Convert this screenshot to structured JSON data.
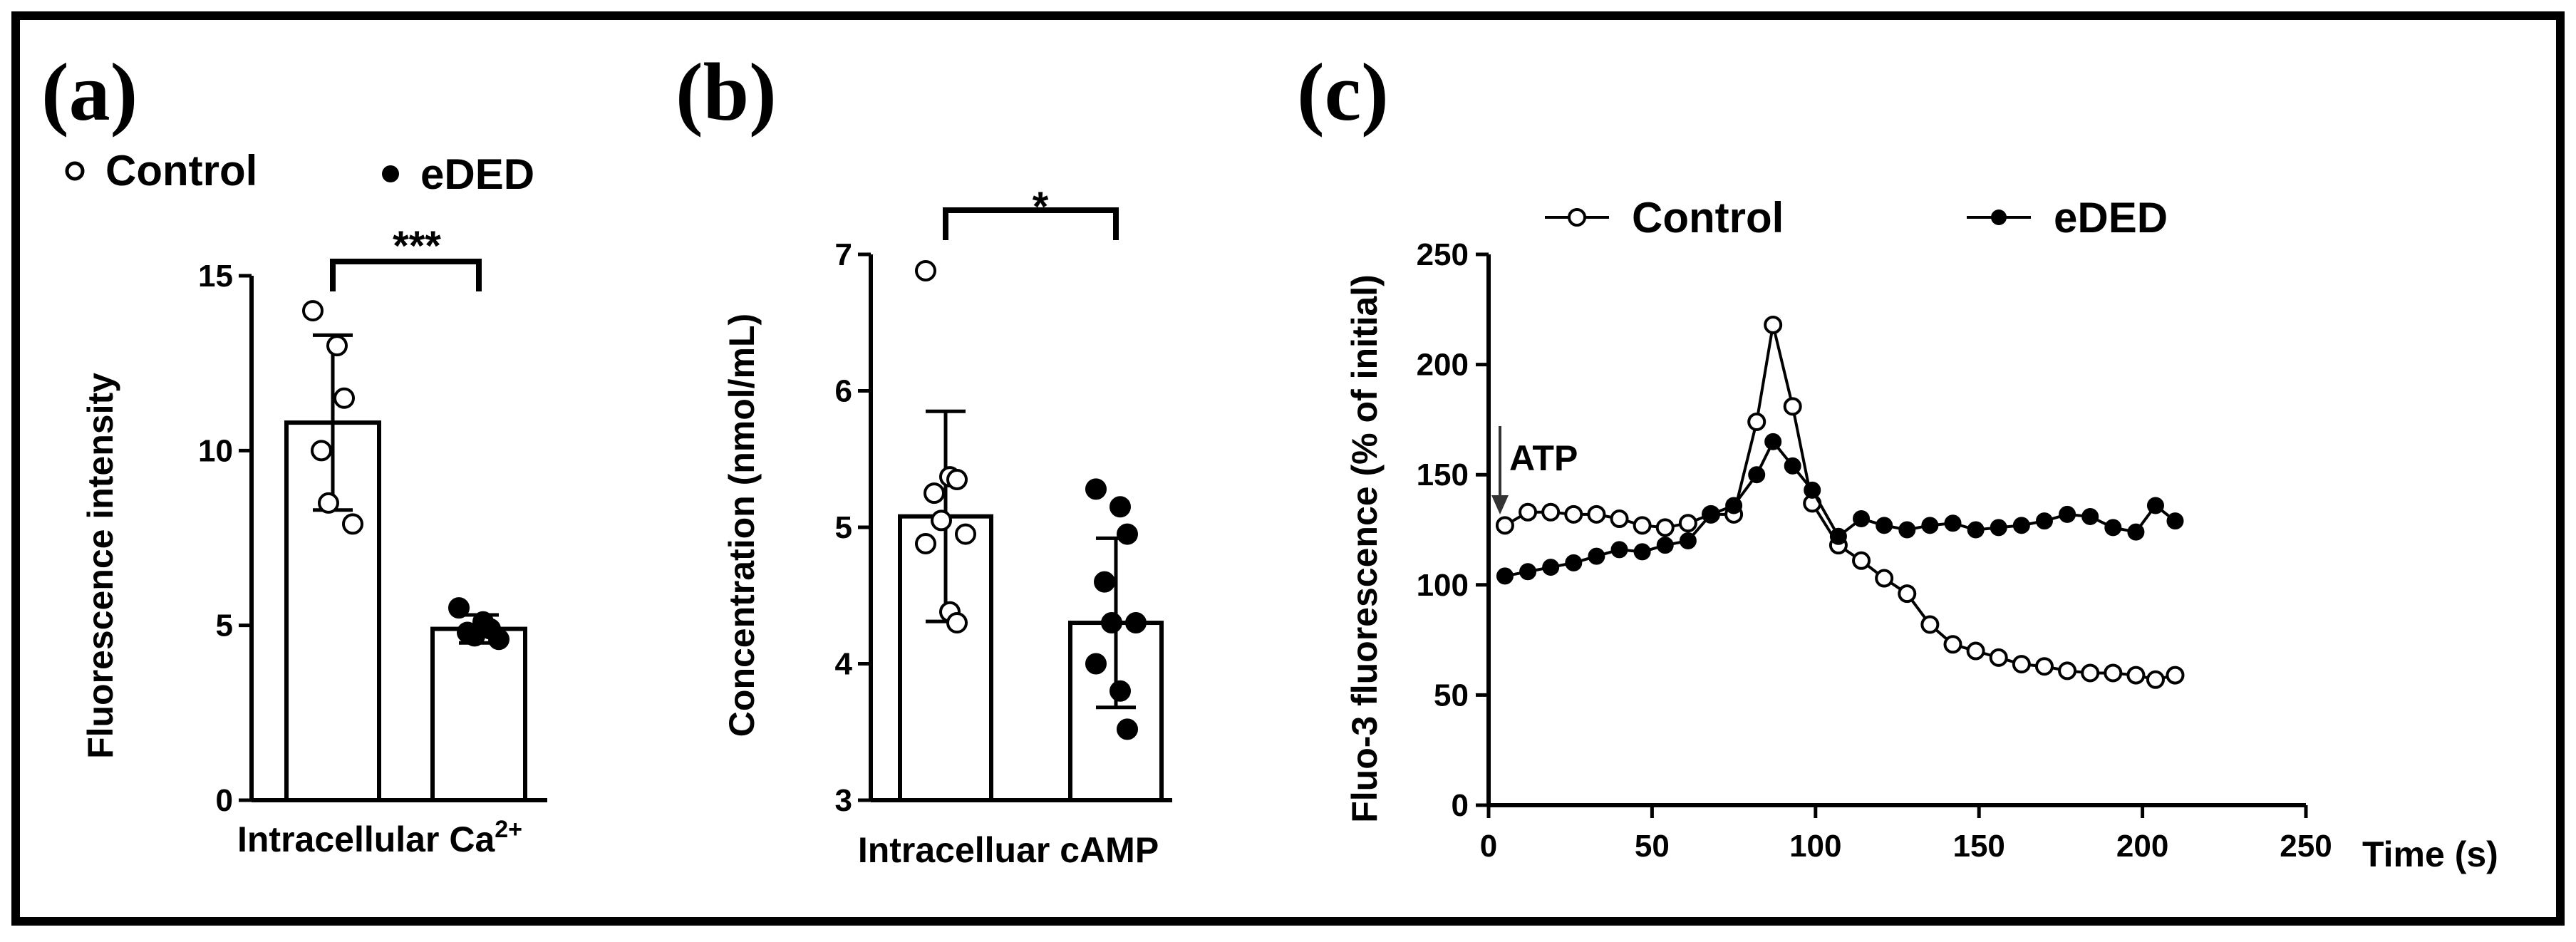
{
  "chart_data": [
    {
      "panel": "(a)",
      "type": "bar",
      "title": "",
      "ylabel": "Fluorescence intensity",
      "xlabel_base": "Intracellular Ca",
      "xlabel_sup": "2+",
      "ylim": [
        0,
        15
      ],
      "yticks": [
        0,
        5,
        10,
        15
      ],
      "categories": [
        "Control",
        "eDED"
      ],
      "means": [
        10.8,
        4.9
      ],
      "sd": [
        2.5,
        0.4
      ],
      "points": [
        [
          14.0,
          13.0,
          11.5,
          10.0,
          8.5,
          7.9
        ],
        [
          5.5,
          5.1,
          4.9,
          4.8,
          4.7,
          4.6
        ]
      ],
      "legend": [
        {
          "marker": "○",
          "label": "Control"
        },
        {
          "marker": "●",
          "label": "eDED"
        }
      ],
      "significance": "***"
    },
    {
      "panel": "(b)",
      "type": "bar",
      "title": "",
      "ylabel": "Concentration (nmol/mL)",
      "xlabel": "Intracelluar cAMP",
      "ylim": [
        3,
        7
      ],
      "yticks": [
        3,
        4,
        5,
        6,
        7
      ],
      "categories": [
        "Control",
        "eDED"
      ],
      "means": [
        5.08,
        4.3
      ],
      "sd": [
        0.77,
        0.62
      ],
      "points": [
        [
          6.88,
          5.37,
          5.35,
          5.25,
          5.05,
          4.95,
          4.88,
          4.38,
          4.3
        ],
        [
          5.28,
          5.15,
          4.95,
          4.6,
          4.3,
          4.3,
          4.0,
          3.8,
          3.52
        ]
      ],
      "significance": "*"
    },
    {
      "panel": "(c)",
      "type": "line",
      "title": "",
      "ylabel": "Fluo-3 fluorescence (% of initial)",
      "xlabel": "Time (s)",
      "xlim": [
        0,
        250
      ],
      "ylim": [
        0,
        250
      ],
      "xticks": [
        0,
        50,
        100,
        150,
        200,
        250
      ],
      "yticks": [
        0,
        50,
        100,
        150,
        200,
        250
      ],
      "annotation": "ATP",
      "annotation_x": 5,
      "legend": [
        {
          "marker": "○",
          "label": "Control"
        },
        {
          "marker": "●",
          "label": "eDED"
        }
      ],
      "series": [
        {
          "name": "Control",
          "marker": "open",
          "x": [
            5,
            12,
            19,
            26,
            33,
            40,
            47,
            54,
            61,
            68,
            75,
            82,
            87,
            93,
            99,
            107,
            114,
            121,
            128,
            135,
            142,
            149,
            156,
            163,
            170,
            177,
            184,
            191,
            198,
            204,
            210
          ],
          "y": [
            127,
            133,
            133,
            132,
            132,
            130,
            127,
            126,
            128,
            132,
            132,
            174,
            218,
            181,
            137,
            118,
            111,
            103,
            96,
            82,
            73,
            70,
            67,
            64,
            63,
            61,
            60,
            60,
            59,
            57,
            59
          ]
        },
        {
          "name": "eDED",
          "marker": "filled",
          "x": [
            5,
            12,
            19,
            26,
            33,
            40,
            47,
            54,
            61,
            68,
            75,
            82,
            87,
            93,
            99,
            107,
            114,
            121,
            128,
            135,
            142,
            149,
            156,
            163,
            170,
            177,
            184,
            191,
            198,
            204,
            210
          ],
          "y": [
            104,
            106,
            108,
            110,
            113,
            116,
            115,
            118,
            120,
            132,
            136,
            150,
            165,
            154,
            143,
            122,
            130,
            127,
            125,
            127,
            128,
            125,
            126,
            127,
            129,
            132,
            131,
            126,
            124,
            136,
            129
          ]
        }
      ]
    }
  ]
}
